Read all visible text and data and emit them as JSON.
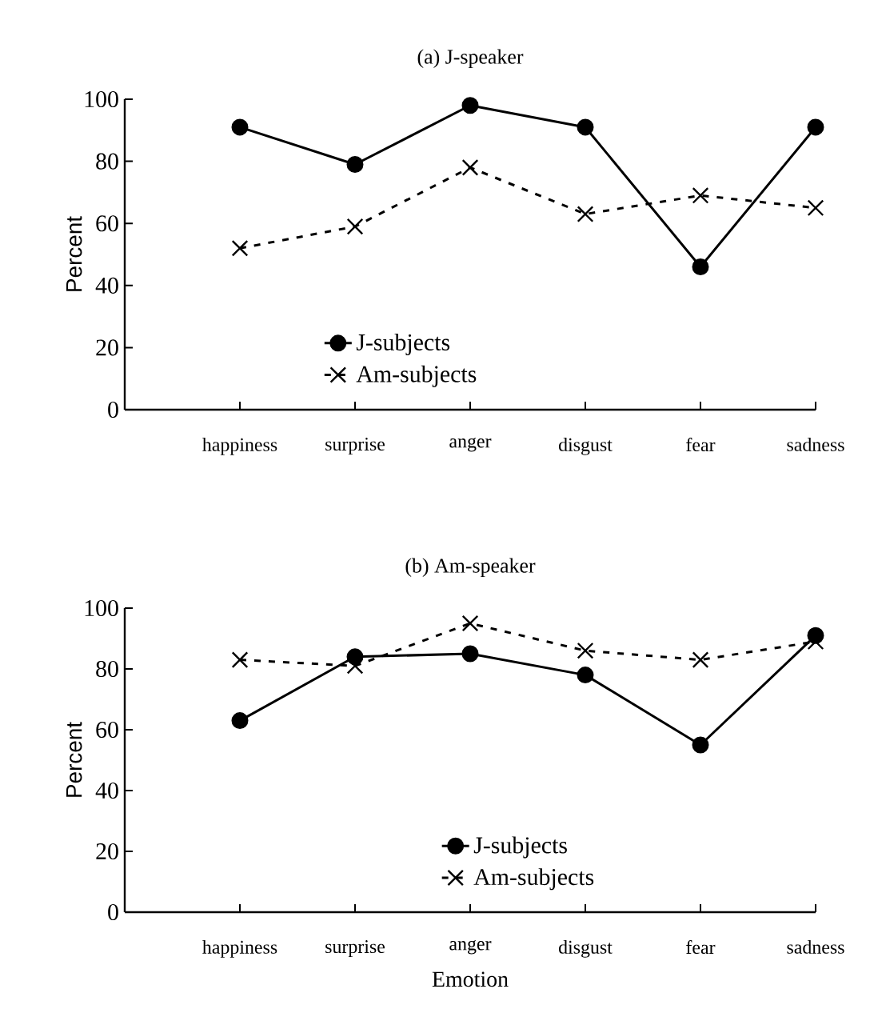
{
  "chart_data": [
    {
      "type": "line",
      "title": "(a) J-speaker",
      "ylabel": "Percent",
      "categories": [
        "happiness",
        "surprise",
        "anger",
        "disgust",
        "fear",
        "sadness"
      ],
      "ylim": [
        0,
        100
      ],
      "yticks": [
        0,
        20,
        40,
        60,
        80,
        100
      ],
      "legend": "bottom",
      "grid": false,
      "series": [
        {
          "name": "J-subjects",
          "color": "#000000",
          "marker": "circle",
          "line_style": "solid",
          "values": [
            91,
            79,
            98,
            91,
            46,
            91
          ]
        },
        {
          "name": "Am-subjects",
          "color": "#000000",
          "marker": "cross",
          "line_style": "dashed",
          "values": [
            52,
            59,
            78,
            63,
            69,
            65
          ]
        }
      ]
    },
    {
      "type": "line",
      "title": "(b) Am-speaker",
      "xlabel": "Emotion",
      "ylabel": "Percent",
      "categories": [
        "happiness",
        "surprise",
        "anger",
        "disgust",
        "fear",
        "sadness"
      ],
      "ylim": [
        0,
        100
      ],
      "yticks": [
        0,
        20,
        40,
        60,
        80,
        100
      ],
      "legend": "bottom right",
      "grid": false,
      "series": [
        {
          "name": "J-subjects",
          "color": "#000000",
          "marker": "circle",
          "line_style": "solid",
          "values": [
            63,
            84,
            85,
            78,
            55,
            91
          ]
        },
        {
          "name": "Am-subjects",
          "color": "#000000",
          "marker": "cross",
          "line_style": "dashed",
          "values": [
            83,
            81,
            95,
            86,
            83,
            89
          ]
        }
      ]
    }
  ]
}
